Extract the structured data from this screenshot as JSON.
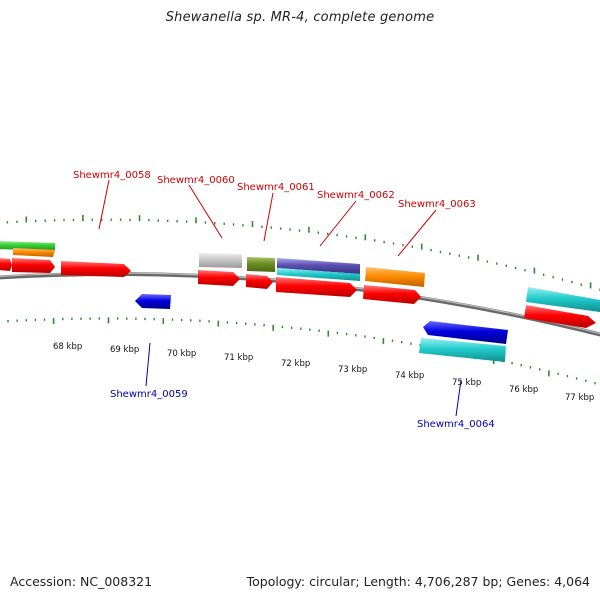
{
  "title": "Shewanella sp. MR-4, complete genome",
  "footer": {
    "accession": "Accession: NC_008321",
    "summary": "Topology: circular; Length: 4,706,287 bp; Genes: 4,064"
  },
  "colors": {
    "backbone": "#888888",
    "tick": "#2e8b2e",
    "top_label": "#cc0000",
    "bottom_label": "#0000aa",
    "red": "#ff0000",
    "orange": "#ff8c00",
    "green": "#33cc33",
    "gray": "#c8c8c8",
    "olive": "#6b8e23",
    "cyan": "#22cccc",
    "blue": "#0000dd",
    "slate": "#6a5acd"
  },
  "scale_labels": [
    "68 kbp",
    "69 kbp",
    "70 kbp",
    "71 kbp",
    "72 kbp",
    "73 kbp",
    "74 kbp",
    "75 kbp",
    "76 kbp",
    "77 kbp"
  ],
  "gene_labels_top": [
    "Shewmr4_0058",
    "Shewmr4_0060",
    "Shewmr4_0061",
    "Shewmr4_0062",
    "Shewmr4_0063"
  ],
  "gene_labels_bottom": [
    "Shewmr4_0059",
    "Shewmr4_0064"
  ],
  "features": [
    {
      "color": "green",
      "track": "upper-outer"
    },
    {
      "color": "orange",
      "track": "upper-outer"
    },
    {
      "color": "red",
      "track": "upper-inner"
    },
    {
      "color": "red",
      "track": "upper-inner"
    },
    {
      "color": "red",
      "track": "upper-inner"
    },
    {
      "color": "gray",
      "track": "upper-outer"
    },
    {
      "color": "red",
      "track": "upper-inner"
    },
    {
      "color": "olive",
      "track": "upper-outer"
    },
    {
      "color": "red",
      "track": "upper-inner"
    },
    {
      "color": "slate",
      "track": "upper-outer"
    },
    {
      "color": "cyan",
      "track": "upper-outer"
    },
    {
      "color": "red",
      "track": "upper-inner"
    },
    {
      "color": "orange",
      "track": "upper-outer"
    },
    {
      "color": "red",
      "track": "upper-inner"
    },
    {
      "color": "cyan",
      "track": "upper-outer"
    },
    {
      "color": "red",
      "track": "upper-inner"
    },
    {
      "color": "blue",
      "track": "lower-inner"
    },
    {
      "color": "blue",
      "track": "lower-inner"
    },
    {
      "color": "cyan",
      "track": "lower-outer"
    }
  ]
}
